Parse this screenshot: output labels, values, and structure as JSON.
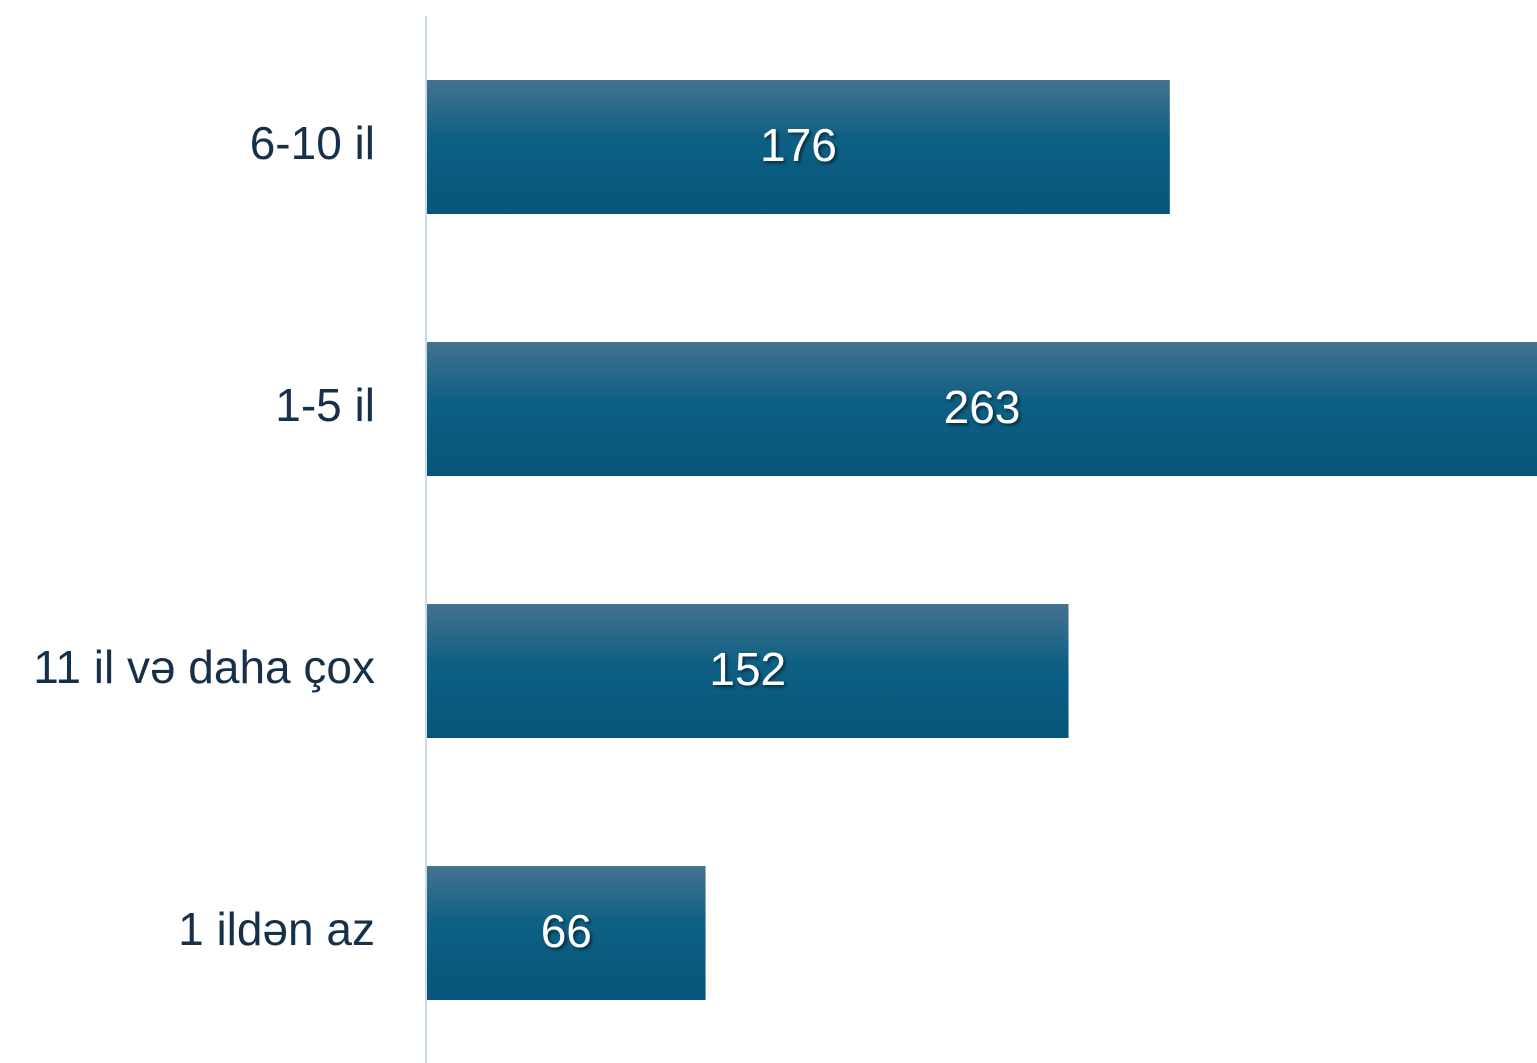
{
  "chart_data": {
    "type": "bar",
    "orientation": "horizontal",
    "categories": [
      "6-10 il",
      "1-5 il",
      "11 il və daha çox",
      "1 ildən az"
    ],
    "values": [
      176,
      263,
      152,
      66
    ],
    "title": "",
    "xlabel": "",
    "ylabel": "",
    "xlim": [
      0,
      263
    ],
    "grid": false,
    "legend": "none",
    "data_labels": true,
    "bar_color_top": "#45728f",
    "bar_color_bottom": "#07567a",
    "axis_color": "#c9d9ee",
    "label_color": "#17304a",
    "value_label_color": "#ffffff"
  }
}
